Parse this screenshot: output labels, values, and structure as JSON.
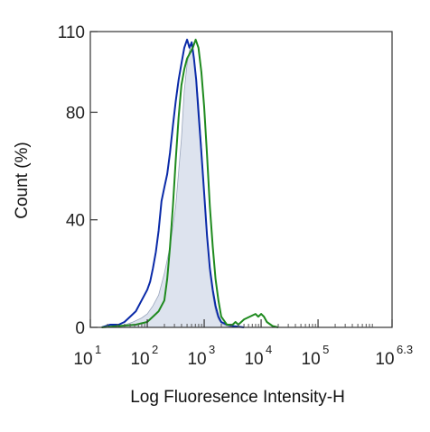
{
  "chart_data": {
    "type": "area",
    "xlabel": "Log Fluoresence Intensity-H",
    "ylabel": "Count  (%)",
    "x_scale": "log",
    "xlim": [
      1,
      6.3
    ],
    "ylim": [
      0,
      110
    ],
    "x_ticks": [
      {
        "exp": 1,
        "base": "10",
        "sup": "1"
      },
      {
        "exp": 2,
        "base": "10",
        "sup": "2"
      },
      {
        "exp": 3,
        "base": "10",
        "sup": "3"
      },
      {
        "exp": 4,
        "base": "10",
        "sup": "4"
      },
      {
        "exp": 5,
        "base": "10",
        "sup": "5"
      },
      {
        "exp": 6.3,
        "base": "10",
        "sup": "6.3"
      }
    ],
    "y_ticks": [
      {
        "v": 0,
        "label": "0"
      },
      {
        "v": 40,
        "label": "40"
      },
      {
        "v": 80,
        "label": "80"
      },
      {
        "v": 110,
        "label": "110"
      }
    ],
    "grid": false,
    "series": [
      {
        "style": "filled",
        "color": "#dde3ee",
        "x": [
          1.3,
          1.55,
          1.75,
          1.9,
          2.0,
          2.1,
          2.2,
          2.3,
          2.4,
          2.5,
          2.6,
          2.65,
          2.7,
          2.75,
          2.8,
          2.85,
          2.9,
          2.95,
          3.0,
          3.05,
          3.1,
          3.15,
          3.2,
          3.25,
          3.3,
          3.4,
          3.5
        ],
        "y": [
          0,
          0.5,
          2,
          3.5,
          5,
          8,
          12,
          20,
          30,
          45,
          70,
          88,
          98,
          104,
          102,
          95,
          84,
          68,
          50,
          34,
          20,
          12,
          6,
          3,
          1.5,
          0.5,
          0
        ]
      },
      {
        "style": "line",
        "color": "#0a2aa8",
        "x": [
          1.2,
          1.35,
          1.5,
          1.6,
          1.7,
          1.8,
          1.9,
          2.0,
          2.05,
          2.1,
          2.15,
          2.2,
          2.25,
          2.3,
          2.35,
          2.4,
          2.45,
          2.5,
          2.55,
          2.6,
          2.65,
          2.7,
          2.74,
          2.78,
          2.82,
          2.86,
          2.9,
          2.94,
          3.0,
          3.05,
          3.1,
          3.15,
          3.2,
          3.25,
          3.3,
          3.4,
          3.5,
          3.7
        ],
        "y": [
          0,
          1,
          1,
          2,
          4,
          6,
          10,
          14,
          17,
          22,
          28,
          36,
          47,
          52,
          57,
          65,
          75,
          84,
          92,
          98,
          104,
          107,
          104,
          106,
          100,
          92,
          80,
          68,
          50,
          34,
          22,
          14,
          8,
          4,
          2,
          1,
          0.5,
          0
        ]
      },
      {
        "style": "line",
        "color": "#1e8a1e",
        "x": [
          1.2,
          1.5,
          1.8,
          2.0,
          2.1,
          2.2,
          2.3,
          2.35,
          2.4,
          2.45,
          2.5,
          2.55,
          2.6,
          2.65,
          2.7,
          2.75,
          2.8,
          2.85,
          2.9,
          2.95,
          3.0,
          3.05,
          3.1,
          3.15,
          3.2,
          3.25,
          3.3,
          3.4,
          3.5,
          3.55,
          3.6,
          3.7,
          3.8,
          3.9,
          3.95,
          4.0,
          4.05,
          4.1,
          4.2,
          4.3
        ],
        "y": [
          0,
          0.5,
          1,
          2,
          4,
          6,
          10,
          18,
          30,
          45,
          62,
          78,
          90,
          96,
          100,
          102,
          104,
          107,
          104,
          95,
          82,
          64,
          45,
          30,
          18,
          10,
          4,
          1,
          1,
          2,
          1,
          3,
          4,
          5,
          4,
          5,
          4,
          2,
          0.5,
          0
        ]
      }
    ]
  }
}
